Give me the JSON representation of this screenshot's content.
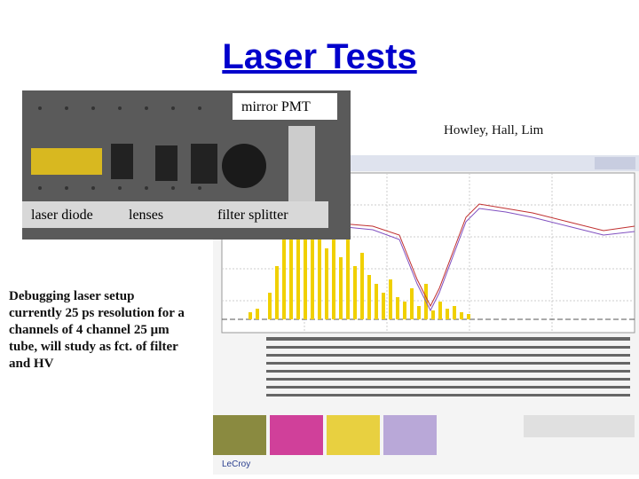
{
  "title": "Laser Tests",
  "photo": {
    "top_label": "mirror  PMT",
    "bottom_labels": [
      "laser diode",
      "lenses",
      "filter  splitter"
    ]
  },
  "authors": "Howley, Hall, Lim",
  "body": [
    "Debugging laser setup",
    "currently 25 ps resolution for a",
    "channels of 4 channel 25 μm",
    "tube, will study as fct. of filter",
    "and HV"
  ],
  "scope": {
    "brand": "LeCroy"
  }
}
